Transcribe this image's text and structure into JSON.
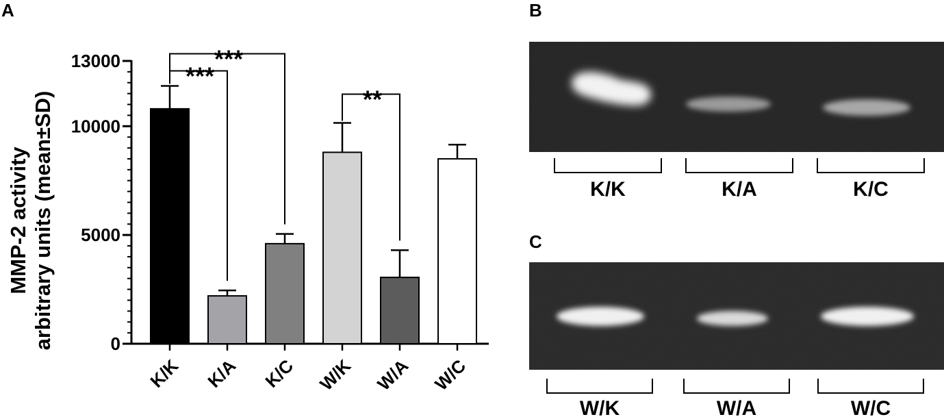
{
  "panels": {
    "a": {
      "letter": "A"
    },
    "b": {
      "letter": "B"
    },
    "c": {
      "letter": "C"
    }
  },
  "chart_data": {
    "type": "bar",
    "title": "",
    "xlabel": "",
    "ylabel_line1": "MMP-2 activity",
    "ylabel_line2": "arbitrary units (mean±SD)",
    "ylim": [
      0,
      13000
    ],
    "yticks": [
      0,
      5000,
      10000,
      13000
    ],
    "categories": [
      "K/K",
      "K/A",
      "K/C",
      "W/K",
      "W/A",
      "W/C"
    ],
    "values": [
      10800,
      2200,
      4600,
      8800,
      3050,
      8500
    ],
    "errors": [
      1050,
      250,
      450,
      1350,
      1250,
      650
    ],
    "colors": [
      "#000000",
      "#a4a4a8",
      "#808080",
      "#d3d3d3",
      "#5c5c5c",
      "#ffffff"
    ],
    "significance": [
      {
        "from": 0,
        "to": 1,
        "label": "***"
      },
      {
        "from": 0,
        "to": 2,
        "label": "***"
      },
      {
        "from": 3,
        "to": 4,
        "label": "**"
      }
    ],
    "grid": false,
    "legend": "none"
  },
  "gels": {
    "b": {
      "lanes": [
        "K/K",
        "K/A",
        "K/C"
      ]
    },
    "c": {
      "lanes": [
        "W/K",
        "W/A",
        "W/C"
      ]
    }
  }
}
